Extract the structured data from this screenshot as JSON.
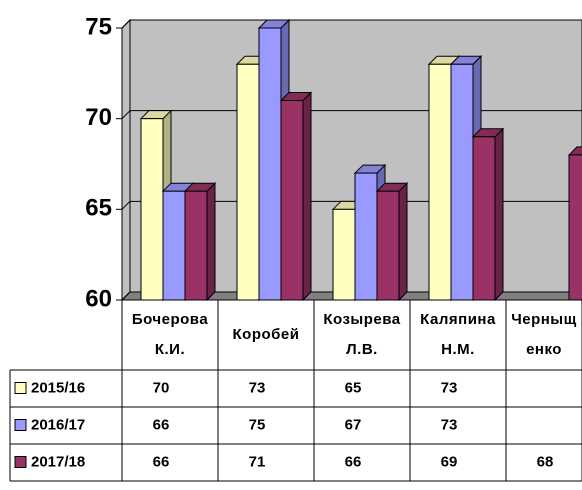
{
  "chart_data": {
    "type": "bar3d",
    "categories": [
      "Бочерова К.И.",
      "Коробей",
      "Козырева Л.В.",
      "Каляпина Н.М.",
      "Черныщенко"
    ],
    "series": [
      {
        "name": "2015/16",
        "color": "#ffffc0",
        "values": [
          70,
          73,
          65,
          73,
          null
        ]
      },
      {
        "name": "2016/17",
        "color": "#9999ff",
        "values": [
          66,
          75,
          67,
          73,
          null
        ]
      },
      {
        "name": "2017/18",
        "color": "#993366",
        "values": [
          66,
          71,
          66,
          69,
          68
        ]
      }
    ],
    "ylim": [
      60,
      75
    ],
    "yticks": [
      60,
      65,
      70,
      75
    ],
    "grid": true,
    "wall_color": "#c0c0c0"
  }
}
